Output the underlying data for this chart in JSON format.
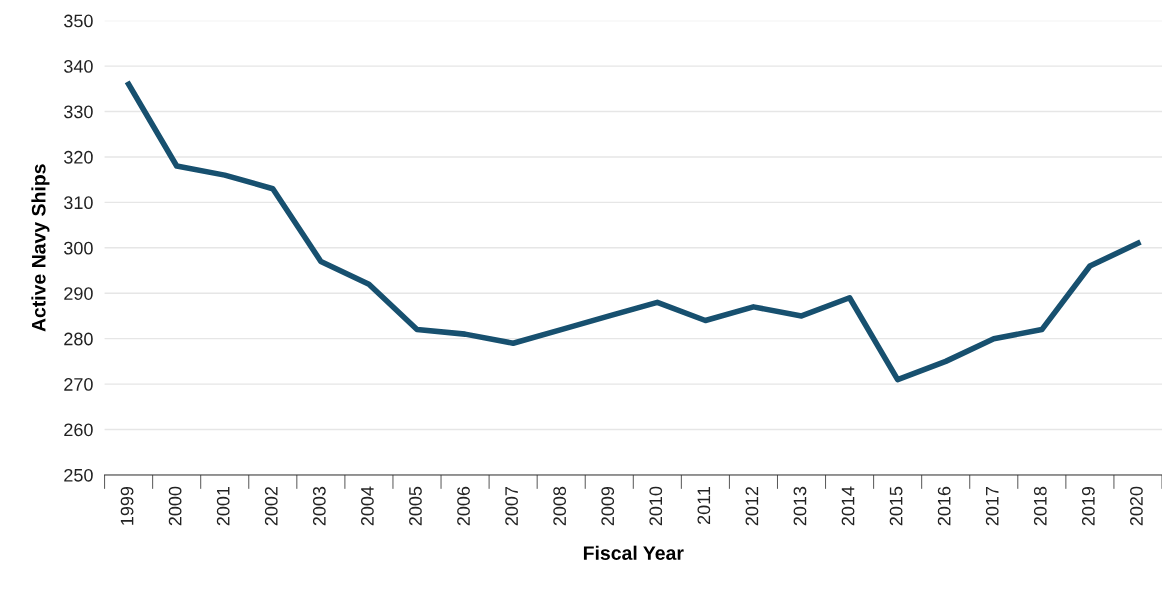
{
  "chart_data": {
    "type": "line",
    "xlabel": "Fiscal Year",
    "ylabel": "Active Navy Ships",
    "categories": [
      "1999",
      "2000",
      "2001",
      "2002",
      "2003",
      "2004",
      "2005",
      "2006",
      "2007",
      "2008",
      "2009",
      "2010",
      "2011",
      "2012",
      "2013",
      "2014",
      "2015",
      "2016",
      "2017",
      "2018",
      "2019",
      "2020"
    ],
    "series": [
      {
        "color": "#17506f",
        "values": [
          336,
          318,
          316,
          313,
          297,
          292,
          282,
          281,
          279,
          282,
          285,
          288,
          284,
          287,
          285,
          289,
          271,
          275,
          280,
          282,
          296,
          301
        ]
      }
    ],
    "ylim": [
      250,
      350
    ],
    "yticks": [
      250,
      260,
      270,
      280,
      290,
      300,
      310,
      320,
      330,
      340,
      350
    ],
    "grid": "y",
    "legend": false,
    "marker": "none",
    "line_style": "solid"
  }
}
